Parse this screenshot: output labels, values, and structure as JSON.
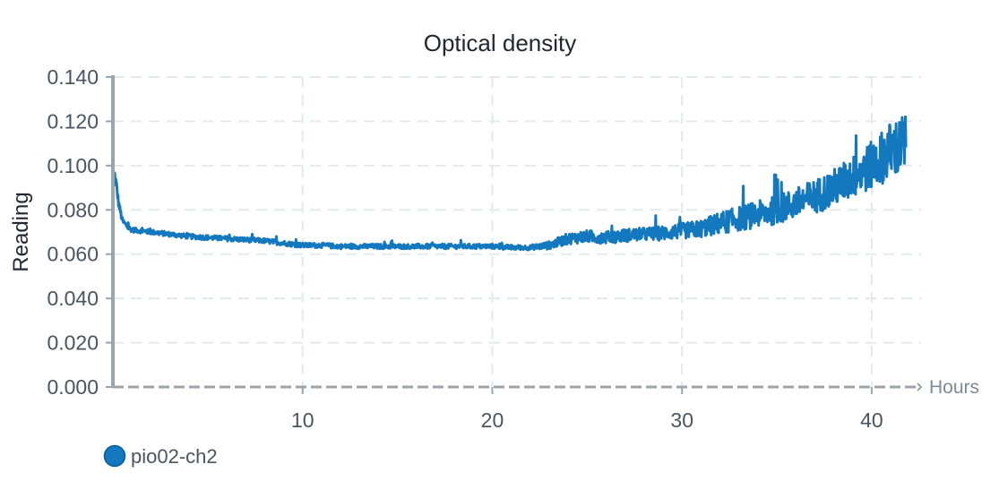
{
  "chart_data": {
    "type": "line",
    "title": "Optical density",
    "xlabel": "Hours",
    "ylabel": "Reading",
    "xlim": [
      0,
      42.6
    ],
    "ylim": [
      0,
      0.14
    ],
    "x_ticks": [
      10,
      20,
      30,
      40
    ],
    "x_tick_labels": [
      "10",
      "20",
      "30",
      "40"
    ],
    "y_ticks": [
      0,
      0.02,
      0.04,
      0.06,
      0.08,
      0.1,
      0.12,
      0.14
    ],
    "y_tick_labels": [
      "0.000",
      "0.020",
      "0.040",
      "0.060",
      "0.080",
      "0.100",
      "0.120",
      "0.140"
    ],
    "grid": true,
    "legend": "bottom-left",
    "series": [
      {
        "name": "pio02-ch2",
        "color": "#1478be",
        "x": [
          0.05,
          0.1,
          0.2,
          0.3,
          0.5,
          0.8,
          1.0,
          1.5,
          2,
          3,
          4,
          5,
          6,
          7,
          8,
          9,
          10,
          11,
          12,
          13,
          14,
          15,
          16,
          17,
          18,
          19,
          20,
          21,
          22,
          23,
          24,
          25,
          26,
          27,
          28,
          29,
          30,
          31,
          32,
          33,
          34,
          35,
          36,
          37,
          38,
          39,
          40,
          41,
          41.8
        ],
        "y": [
          0.096,
          0.095,
          0.09,
          0.083,
          0.075,
          0.072,
          0.071,
          0.0705,
          0.07,
          0.069,
          0.068,
          0.0675,
          0.067,
          0.0665,
          0.066,
          0.065,
          0.064,
          0.064,
          0.0635,
          0.0635,
          0.0635,
          0.0635,
          0.0635,
          0.0635,
          0.0635,
          0.0635,
          0.0635,
          0.063,
          0.063,
          0.064,
          0.067,
          0.068,
          0.0675,
          0.0685,
          0.069,
          0.0695,
          0.0705,
          0.0715,
          0.074,
          0.076,
          0.078,
          0.08,
          0.083,
          0.086,
          0.09,
          0.095,
          0.1,
          0.107,
          0.11
        ],
        "noise": [
          0.004,
          0.004,
          0.003,
          0.002,
          0.0015,
          0.0012,
          0.0011,
          0.0011,
          0.0011,
          0.0011,
          0.0011,
          0.0011,
          0.0011,
          0.0011,
          0.0011,
          0.0011,
          0.0011,
          0.0011,
          0.0011,
          0.0011,
          0.0011,
          0.0011,
          0.0011,
          0.0011,
          0.0011,
          0.0011,
          0.0011,
          0.0011,
          0.0011,
          0.0018,
          0.0025,
          0.0028,
          0.0028,
          0.003,
          0.003,
          0.0033,
          0.0035,
          0.004,
          0.005,
          0.0055,
          0.006,
          0.0065,
          0.007,
          0.0078,
          0.0085,
          0.0095,
          0.011,
          0.013,
          0.014
        ]
      }
    ]
  }
}
